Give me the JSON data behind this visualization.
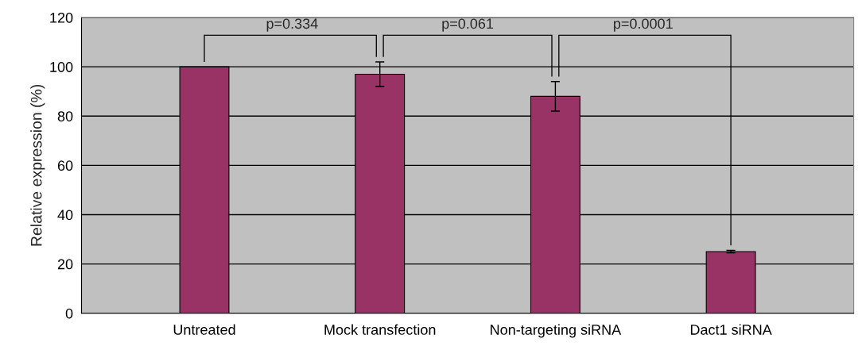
{
  "chart_data": {
    "type": "bar",
    "ylabel": "Relative expression (%)",
    "categories": [
      "Untreated",
      "Mock transfection",
      "Non-targeting siRNA",
      "Dact1 siRNA"
    ],
    "values": [
      100,
      97,
      88,
      25
    ],
    "errors": [
      null,
      5,
      6,
      0.5
    ],
    "color": "#993366",
    "ylim": [
      0,
      120
    ],
    "yticks": [
      0,
      20,
      40,
      60,
      80,
      100,
      120
    ],
    "grid": "y",
    "annotations": [
      "p=0.334",
      "p=0.061",
      "p=0.0001"
    ]
  }
}
